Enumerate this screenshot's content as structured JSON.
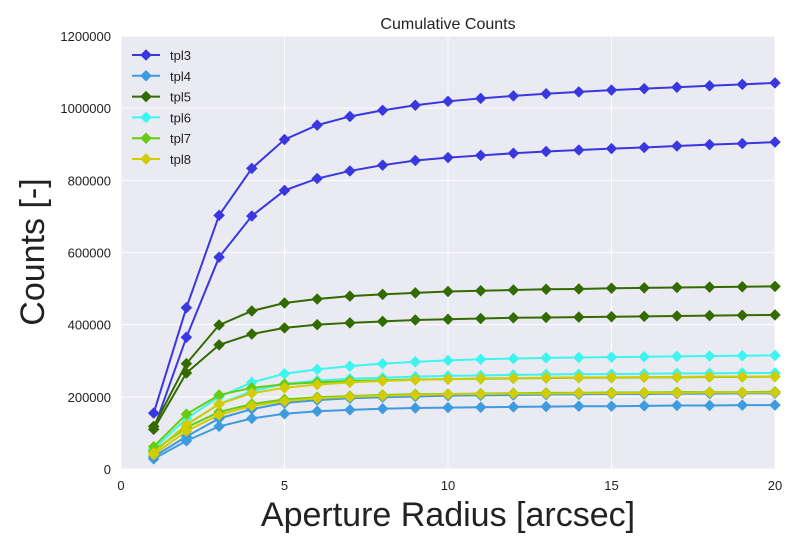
{
  "chart_data": {
    "type": "line",
    "title": "Cumulative Counts",
    "xlabel": "Aperture Radius [arcsec]",
    "ylabel": "Counts [-]",
    "xlim": [
      0,
      20
    ],
    "ylim": [
      0,
      1200000
    ],
    "x_ticks": [
      0,
      5,
      10,
      15,
      20
    ],
    "y_ticks": [
      0,
      200000,
      400000,
      600000,
      800000,
      1000000,
      1200000
    ],
    "grid": true,
    "legend_position": "top-left",
    "x": [
      1,
      2,
      3,
      4,
      5,
      6,
      7,
      8,
      9,
      10,
      11,
      12,
      13,
      14,
      15,
      16,
      17,
      18,
      19,
      20
    ],
    "series": [
      {
        "name": "tpl3",
        "color": "#3a37e0",
        "values": [
          155000,
          447000,
          703000,
          833000,
          913000,
          953000,
          977000,
          994000,
          1008000,
          1019000,
          1027000,
          1034000,
          1040000,
          1045000,
          1050000,
          1054000,
          1058000,
          1062000,
          1066000,
          1070000
        ]
      },
      {
        "name": "tpl3",
        "color": "#3a37e0",
        "values": [
          110000,
          365000,
          587000,
          701000,
          772000,
          805000,
          826000,
          842000,
          855000,
          863000,
          869000,
          875000,
          880000,
          884000,
          888000,
          891000,
          895000,
          899000,
          902000,
          906000
        ]
      },
      {
        "name": "tpl4",
        "color": "#3d9be0",
        "values": [
          28000,
          78000,
          118000,
          140000,
          153000,
          160000,
          164000,
          167000,
          169000,
          170000,
          171000,
          172000,
          173000,
          174000,
          174000,
          175000,
          176000,
          176000,
          177000,
          177000
        ]
      },
      {
        "name": "tpl4",
        "color": "#3d9be0",
        "values": [
          34000,
          90000,
          140000,
          166000,
          183000,
          191000,
          196000,
          199000,
          201000,
          203000,
          204000,
          205000,
          206000,
          207000,
          208000,
          208000,
          209000,
          209000,
          210000,
          210000
        ]
      },
      {
        "name": "tpl5",
        "color": "#336b00",
        "values": [
          118000,
          292000,
          399000,
          438000,
          460000,
          471000,
          479000,
          484000,
          488000,
          492000,
          494000,
          496000,
          498000,
          499000,
          501000,
          502000,
          503000,
          504000,
          505000,
          506000
        ]
      },
      {
        "name": "tpl5",
        "color": "#336b00",
        "values": [
          110000,
          266000,
          344000,
          374000,
          391000,
          400000,
          405000,
          409000,
          413000,
          415000,
          417000,
          419000,
          420000,
          421000,
          422000,
          423000,
          424000,
          425000,
          426000,
          427000
        ]
      },
      {
        "name": "tpl6",
        "color": "#3cf5f0",
        "values": [
          55000,
          140000,
          200000,
          240000,
          264000,
          276000,
          285000,
          292000,
          297000,
          301000,
          304000,
          306000,
          308000,
          309000,
          310000,
          311000,
          312000,
          313000,
          314000,
          315000
        ]
      },
      {
        "name": "tpl6",
        "color": "#3cf5f0",
        "values": [
          48000,
          122000,
          180000,
          216000,
          236000,
          245000,
          250000,
          253000,
          256000,
          258000,
          259000,
          261000,
          262000,
          263000,
          263000,
          264000,
          265000,
          265000,
          266000,
          266000
        ]
      },
      {
        "name": "tpl7",
        "color": "#66cc10",
        "values": [
          62000,
          152000,
          205000,
          225000,
          235000,
          240000,
          244000,
          246000,
          248000,
          249000,
          250000,
          251000,
          252000,
          253000,
          253000,
          254000,
          254000,
          255000,
          255000,
          256000
        ]
      },
      {
        "name": "tpl7",
        "color": "#66cc10",
        "values": [
          50000,
          115000,
          158000,
          180000,
          193000,
          199000,
          202000,
          205000,
          207000,
          208000,
          209000,
          210000,
          211000,
          211000,
          212000,
          212000,
          213000,
          213000,
          213000,
          214000
        ]
      },
      {
        "name": "tpl8",
        "color": "#d2cc00",
        "values": [
          45000,
          123000,
          180000,
          210000,
          225000,
          234000,
          240000,
          244000,
          247000,
          249000,
          251000,
          252000,
          253000,
          254000,
          254000,
          255000,
          255000,
          256000,
          256000,
          256000
        ]
      },
      {
        "name": "tpl8",
        "color": "#d2cc00",
        "values": [
          40000,
          105000,
          150000,
          175000,
          188000,
          196000,
          200000,
          203000,
          205000,
          207000,
          208000,
          209000,
          209000,
          210000,
          210000,
          211000,
          211000,
          212000,
          212000,
          212000
        ]
      }
    ],
    "legend": [
      {
        "name": "tpl3",
        "color": "#3a37e0"
      },
      {
        "name": "tpl4",
        "color": "#3d9be0"
      },
      {
        "name": "tpl5",
        "color": "#336b00"
      },
      {
        "name": "tpl6",
        "color": "#3cf5f0"
      },
      {
        "name": "tpl7",
        "color": "#66cc10"
      },
      {
        "name": "tpl8",
        "color": "#d2cc00"
      }
    ],
    "colors": {
      "background": "#eaeaf2",
      "grid": "#ffffff"
    }
  }
}
